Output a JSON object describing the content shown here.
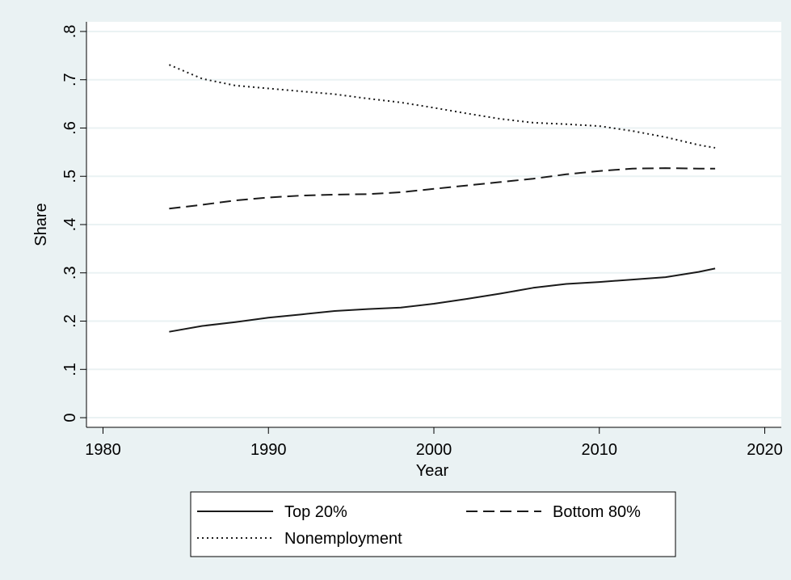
{
  "chart_data": {
    "type": "line",
    "xlabel": "Year",
    "ylabel": "Share",
    "xlim": [
      1979,
      2021
    ],
    "ylim": [
      -0.02,
      0.82
    ],
    "x_ticks": [
      1980,
      1990,
      2000,
      2010,
      2020
    ],
    "x_tick_labels": [
      "1980",
      "1990",
      "2000",
      "2010",
      "2020"
    ],
    "y_ticks": [
      0,
      0.1,
      0.2,
      0.3,
      0.4,
      0.5,
      0.6,
      0.7,
      0.8
    ],
    "y_tick_labels": [
      "0",
      ".1",
      ".2",
      ".3",
      ".4",
      ".5",
      ".6",
      ".7",
      ".8"
    ],
    "grid": "horizontal",
    "legend_position": "bottom",
    "x": [
      1984,
      1986,
      1988,
      1990,
      1992,
      1994,
      1996,
      1998,
      2000,
      2002,
      2004,
      2006,
      2008,
      2010,
      2012,
      2014,
      2016,
      2017
    ],
    "series": [
      {
        "name": "Top 20%",
        "style": "solid",
        "values": [
          0.178,
          0.19,
          0.198,
          0.207,
          0.214,
          0.221,
          0.225,
          0.228,
          0.236,
          0.246,
          0.257,
          0.269,
          0.277,
          0.281,
          0.286,
          0.291,
          0.302,
          0.309
        ]
      },
      {
        "name": "Bottom 80%",
        "style": "dashed",
        "values": [
          0.433,
          0.441,
          0.45,
          0.456,
          0.46,
          0.462,
          0.463,
          0.467,
          0.474,
          0.481,
          0.488,
          0.495,
          0.504,
          0.511,
          0.516,
          0.517,
          0.516,
          0.516
        ]
      },
      {
        "name": "Nonemployment",
        "style": "dotted",
        "values": [
          0.731,
          0.702,
          0.688,
          0.682,
          0.676,
          0.67,
          0.661,
          0.653,
          0.642,
          0.63,
          0.619,
          0.611,
          0.608,
          0.604,
          0.594,
          0.581,
          0.565,
          0.559
        ]
      }
    ],
    "colors": {
      "background": "#eaf2f3",
      "plot_background": "#ffffff",
      "line": "#1a1a1a",
      "grid": "#eaf2f3",
      "axis": "#000000",
      "text": "#000000"
    }
  }
}
